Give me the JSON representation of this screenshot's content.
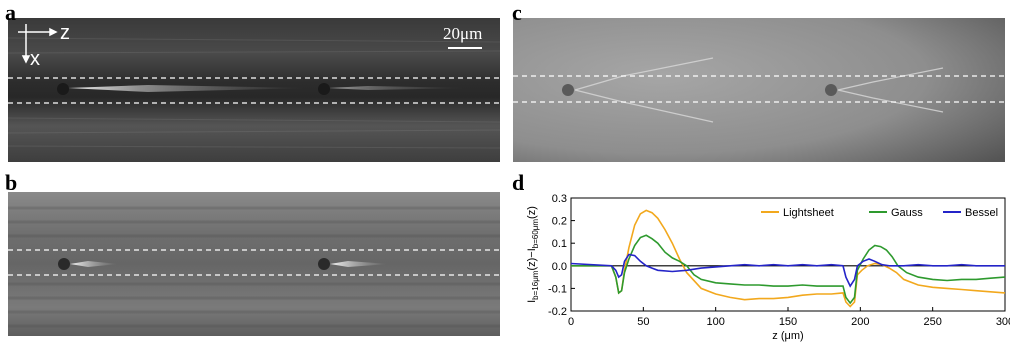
{
  "panels": {
    "a": {
      "letter": "a"
    },
    "b": {
      "letter": "b"
    },
    "c": {
      "letter": "c"
    },
    "d": {
      "letter": "d"
    }
  },
  "axes_indicator": {
    "z_label": "z",
    "x_label": "x"
  },
  "scalebar": {
    "label": "20μm"
  },
  "chart_data": {
    "type": "line",
    "xlabel": "z (μm)",
    "ylabel_main": "I",
    "ylabel_sub1": "b=16μm",
    "ylabel_mid": "(z)−I",
    "ylabel_sub2": "b=60μm",
    "ylabel_end": "(z)",
    "xlim": [
      0,
      300
    ],
    "ylim": [
      -0.2,
      0.3
    ],
    "x_ticks": [
      0,
      50,
      100,
      150,
      200,
      250,
      300
    ],
    "y_ticks": [
      -0.2,
      -0.1,
      0.0,
      0.1,
      0.2,
      0.3
    ],
    "y_tick_labels": [
      "-0.2",
      "-0.1",
      "0.0",
      "0.1",
      "0.2",
      "0.3"
    ],
    "legend_position": "top-right",
    "zero_line": true,
    "series": [
      {
        "name": "Lightsheet",
        "color": "#f2a81d",
        "points": [
          [
            0,
            0.0
          ],
          [
            28,
            0.0
          ],
          [
            31,
            -0.05
          ],
          [
            33,
            -0.12
          ],
          [
            35,
            -0.11
          ],
          [
            37,
            -0.02
          ],
          [
            40,
            0.08
          ],
          [
            44,
            0.18
          ],
          [
            48,
            0.23
          ],
          [
            52,
            0.245
          ],
          [
            56,
            0.235
          ],
          [
            60,
            0.21
          ],
          [
            65,
            0.16
          ],
          [
            70,
            0.1
          ],
          [
            75,
            0.03
          ],
          [
            80,
            -0.03
          ],
          [
            90,
            -0.1
          ],
          [
            100,
            -0.125
          ],
          [
            110,
            -0.14
          ],
          [
            120,
            -0.15
          ],
          [
            130,
            -0.145
          ],
          [
            140,
            -0.145
          ],
          [
            150,
            -0.14
          ],
          [
            160,
            -0.13
          ],
          [
            170,
            -0.125
          ],
          [
            180,
            -0.125
          ],
          [
            188,
            -0.12
          ],
          [
            190,
            -0.16
          ],
          [
            193,
            -0.18
          ],
          [
            196,
            -0.16
          ],
          [
            198,
            -0.04
          ],
          [
            201,
            -0.02
          ],
          [
            205,
            0.0
          ],
          [
            210,
            0.01
          ],
          [
            215,
            0.005
          ],
          [
            220,
            -0.01
          ],
          [
            225,
            -0.03
          ],
          [
            230,
            -0.06
          ],
          [
            240,
            -0.085
          ],
          [
            250,
            -0.095
          ],
          [
            260,
            -0.1
          ],
          [
            270,
            -0.105
          ],
          [
            280,
            -0.11
          ],
          [
            290,
            -0.115
          ],
          [
            300,
            -0.12
          ]
        ]
      },
      {
        "name": "Gauss",
        "color": "#2e9a2e",
        "points": [
          [
            0,
            0.0
          ],
          [
            28,
            0.0
          ],
          [
            31,
            -0.05
          ],
          [
            33,
            -0.12
          ],
          [
            35,
            -0.11
          ],
          [
            37,
            -0.03
          ],
          [
            40,
            0.03
          ],
          [
            44,
            0.09
          ],
          [
            48,
            0.125
          ],
          [
            52,
            0.135
          ],
          [
            56,
            0.12
          ],
          [
            60,
            0.1
          ],
          [
            65,
            0.06
          ],
          [
            70,
            0.035
          ],
          [
            75,
            0.02
          ],
          [
            80,
            0.0
          ],
          [
            85,
            -0.04
          ],
          [
            90,
            -0.06
          ],
          [
            100,
            -0.075
          ],
          [
            110,
            -0.08
          ],
          [
            120,
            -0.085
          ],
          [
            130,
            -0.085
          ],
          [
            140,
            -0.09
          ],
          [
            150,
            -0.09
          ],
          [
            160,
            -0.085
          ],
          [
            170,
            -0.09
          ],
          [
            180,
            -0.09
          ],
          [
            188,
            -0.09
          ],
          [
            190,
            -0.14
          ],
          [
            193,
            -0.165
          ],
          [
            196,
            -0.14
          ],
          [
            198,
            -0.02
          ],
          [
            202,
            0.03
          ],
          [
            206,
            0.07
          ],
          [
            210,
            0.09
          ],
          [
            214,
            0.085
          ],
          [
            218,
            0.07
          ],
          [
            222,
            0.04
          ],
          [
            226,
            0.0
          ],
          [
            232,
            -0.03
          ],
          [
            240,
            -0.05
          ],
          [
            250,
            -0.06
          ],
          [
            260,
            -0.065
          ],
          [
            270,
            -0.06
          ],
          [
            280,
            -0.06
          ],
          [
            290,
            -0.055
          ],
          [
            300,
            -0.05
          ]
        ]
      },
      {
        "name": "Bessel",
        "color": "#2424c8",
        "points": [
          [
            0,
            0.01
          ],
          [
            28,
            0.0
          ],
          [
            31,
            -0.02
          ],
          [
            33,
            -0.05
          ],
          [
            35,
            -0.04
          ],
          [
            37,
            0.02
          ],
          [
            40,
            0.05
          ],
          [
            44,
            0.045
          ],
          [
            48,
            0.02
          ],
          [
            52,
            0.0
          ],
          [
            56,
            -0.01
          ],
          [
            60,
            -0.02
          ],
          [
            70,
            -0.025
          ],
          [
            80,
            -0.02
          ],
          [
            90,
            -0.01
          ],
          [
            100,
            -0.005
          ],
          [
            110,
            0.0
          ],
          [
            120,
            0.005
          ],
          [
            130,
            0.0
          ],
          [
            140,
            0.005
          ],
          [
            150,
            0.0
          ],
          [
            160,
            0.005
          ],
          [
            170,
            0.0
          ],
          [
            180,
            0.005
          ],
          [
            188,
            0.0
          ],
          [
            190,
            -0.05
          ],
          [
            193,
            -0.09
          ],
          [
            196,
            -0.06
          ],
          [
            198,
            0.0
          ],
          [
            202,
            0.02
          ],
          [
            206,
            0.03
          ],
          [
            210,
            0.02
          ],
          [
            215,
            0.005
          ],
          [
            220,
            0.0
          ],
          [
            230,
            0.0
          ],
          [
            240,
            0.005
          ],
          [
            250,
            0.0
          ],
          [
            260,
            0.0
          ],
          [
            270,
            0.005
          ],
          [
            280,
            0.0
          ],
          [
            290,
            0.0
          ],
          [
            300,
            0.0
          ]
        ]
      }
    ]
  }
}
